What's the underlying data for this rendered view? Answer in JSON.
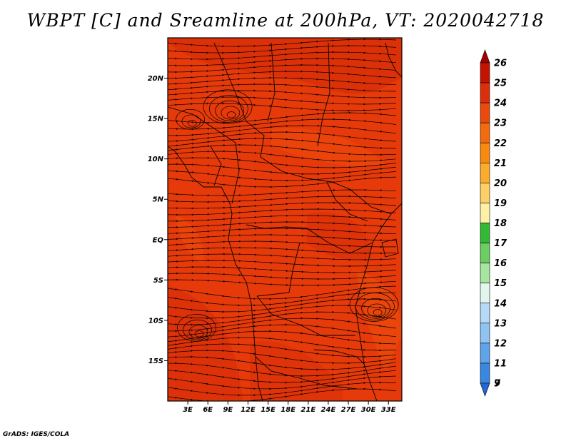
{
  "title": "WBPT [C] and Sreamline at 200hPa, VT: 2020042718",
  "credit": "GrADS: IGES/COLA",
  "map": {
    "variable": "Wet-bulb potential temperature",
    "units": "C",
    "level": "200hPa",
    "valid_time": "2020042718",
    "lon_range": [
      0,
      35
    ],
    "lat_range": [
      -20,
      25
    ],
    "lat_ticks": [
      {
        "value": 20,
        "label": "20N"
      },
      {
        "value": 15,
        "label": "15N"
      },
      {
        "value": 10,
        "label": "10N"
      },
      {
        "value": 5,
        "label": "5N"
      },
      {
        "value": 0,
        "label": "EQ"
      },
      {
        "value": -5,
        "label": "5S"
      },
      {
        "value": -10,
        "label": "10S"
      },
      {
        "value": -15,
        "label": "15S"
      }
    ],
    "lon_ticks": [
      {
        "value": 3,
        "label": "3E"
      },
      {
        "value": 6,
        "label": "6E"
      },
      {
        "value": 9,
        "label": "9E"
      },
      {
        "value": 12,
        "label": "12E"
      },
      {
        "value": 15,
        "label": "15E"
      },
      {
        "value": 18,
        "label": "18E"
      },
      {
        "value": 21,
        "label": "21E"
      },
      {
        "value": 24,
        "label": "24E"
      },
      {
        "value": 27,
        "label": "27E"
      },
      {
        "value": 30,
        "label": "30E"
      },
      {
        "value": 33,
        "label": "33E"
      }
    ],
    "base_color": "#e63a0a",
    "warm_color": "#d42a08",
    "light_color": "#f0550e"
  },
  "colorbar": {
    "labels": [
      "26",
      "25",
      "24",
      "23",
      "22",
      "21",
      "20",
      "19",
      "18",
      "17",
      "16",
      "15",
      "14",
      "13",
      "12",
      "11",
      "9",
      "7"
    ],
    "colors": [
      "#a50000",
      "#c41400",
      "#dc2e08",
      "#eb4a0c",
      "#f26b0e",
      "#f88a10",
      "#fbac2c",
      "#fdd065",
      "#fff0a6",
      "#34b934",
      "#6ccd62",
      "#a5e6a0",
      "#e2f6ee",
      "#b5d9f7",
      "#8ec3f2",
      "#5fa4e9",
      "#3a87e0",
      "#2468d6"
    ]
  }
}
